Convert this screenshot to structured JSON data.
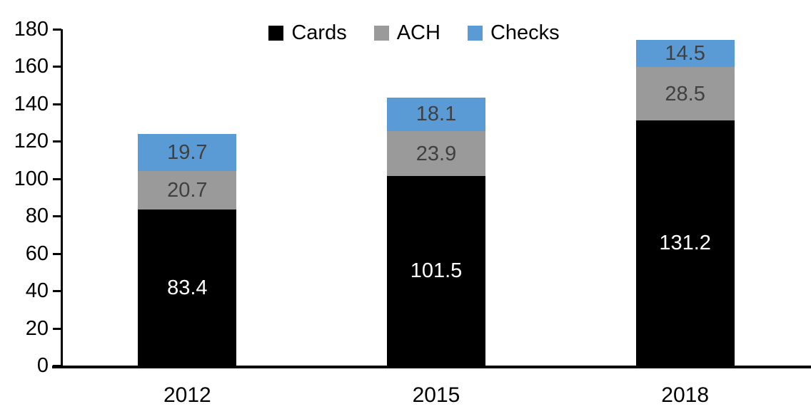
{
  "chart_data": {
    "type": "bar",
    "stacked": true,
    "title": "",
    "xlabel": "",
    "ylabel": "",
    "categories": [
      "2012",
      "2015",
      "2018"
    ],
    "series": [
      {
        "name": "Cards",
        "color": "#000000",
        "label_color": "#ffffff",
        "values": [
          83.4,
          101.5,
          131.2
        ]
      },
      {
        "name": "ACH",
        "color": "#9a9a9a",
        "label_color": "#404040",
        "values": [
          20.7,
          23.9,
          28.5
        ]
      },
      {
        "name": "Checks",
        "color": "#5b9bd5",
        "label_color": "#404040",
        "values": [
          19.7,
          18.1,
          14.5
        ]
      }
    ],
    "y_axis": {
      "min": 0,
      "max": 180,
      "tick_step": 20,
      "ticks": [
        0,
        20,
        40,
        60,
        80,
        100,
        120,
        140,
        160,
        180
      ]
    },
    "legend": {
      "entries": [
        "Cards",
        "ACH",
        "Checks"
      ],
      "position": "top-center"
    },
    "grid": false,
    "axis_color": "#000000"
  }
}
